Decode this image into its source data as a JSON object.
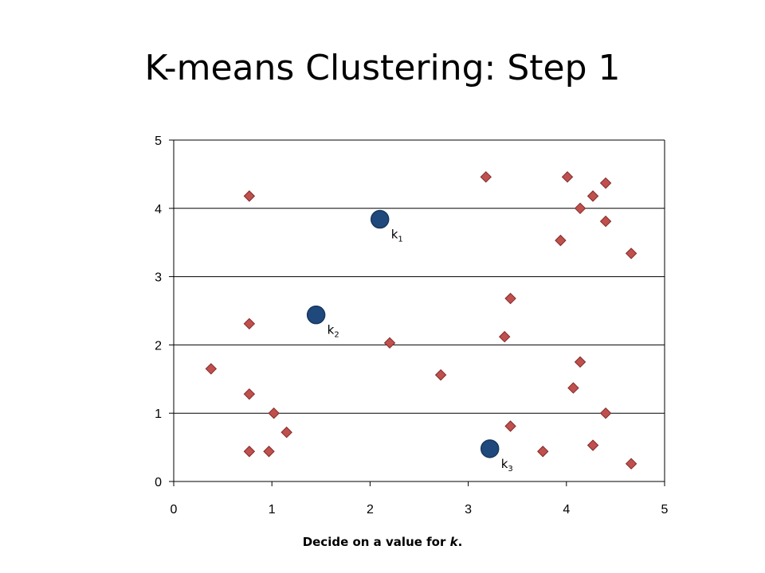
{
  "slide": {
    "title": "K-means Clustering: Step 1",
    "caption_prefix": "Decide on a value for ",
    "caption_var": "k",
    "caption_suffix": "."
  },
  "colors": {
    "data_point_fill": "#c0504d",
    "data_point_stroke": "#7f2b29",
    "centroid_fill": "#1f497d",
    "centroid_stroke": "#17365d",
    "gridline": "#000000"
  },
  "chart_data": {
    "type": "scatter",
    "xlim": [
      0,
      5
    ],
    "ylim": [
      0,
      5
    ],
    "x_ticks": [
      0,
      1,
      2,
      3,
      4,
      5
    ],
    "y_ticks": [
      0,
      1,
      2,
      3,
      4,
      5
    ],
    "grid": "horizontal",
    "series": [
      {
        "marker": "diamond",
        "points": [
          [
            0.38,
            1.65
          ],
          [
            0.77,
            4.18
          ],
          [
            0.77,
            2.31
          ],
          [
            0.77,
            1.28
          ],
          [
            0.77,
            0.44
          ],
          [
            0.97,
            0.44
          ],
          [
            1.02,
            1.0
          ],
          [
            1.15,
            0.72
          ],
          [
            2.2,
            2.03
          ],
          [
            2.72,
            1.56
          ],
          [
            3.18,
            4.46
          ],
          [
            3.37,
            2.12
          ],
          [
            3.43,
            2.68
          ],
          [
            3.43,
            0.81
          ],
          [
            3.76,
            0.44
          ],
          [
            3.94,
            3.53
          ],
          [
            4.01,
            4.46
          ],
          [
            4.07,
            1.37
          ],
          [
            4.14,
            1.75
          ],
          [
            4.14,
            4.0
          ],
          [
            4.27,
            4.18
          ],
          [
            4.27,
            0.53
          ],
          [
            4.4,
            4.37
          ],
          [
            4.4,
            3.81
          ],
          [
            4.4,
            1.0
          ],
          [
            4.66,
            3.34
          ],
          [
            4.66,
            0.26
          ]
        ]
      },
      {
        "marker": "circle",
        "points": [
          [
            2.1,
            3.84,
            "k",
            "1"
          ],
          [
            1.45,
            2.44,
            "k",
            "2"
          ],
          [
            3.22,
            0.48,
            "k",
            "3"
          ]
        ]
      }
    ]
  }
}
